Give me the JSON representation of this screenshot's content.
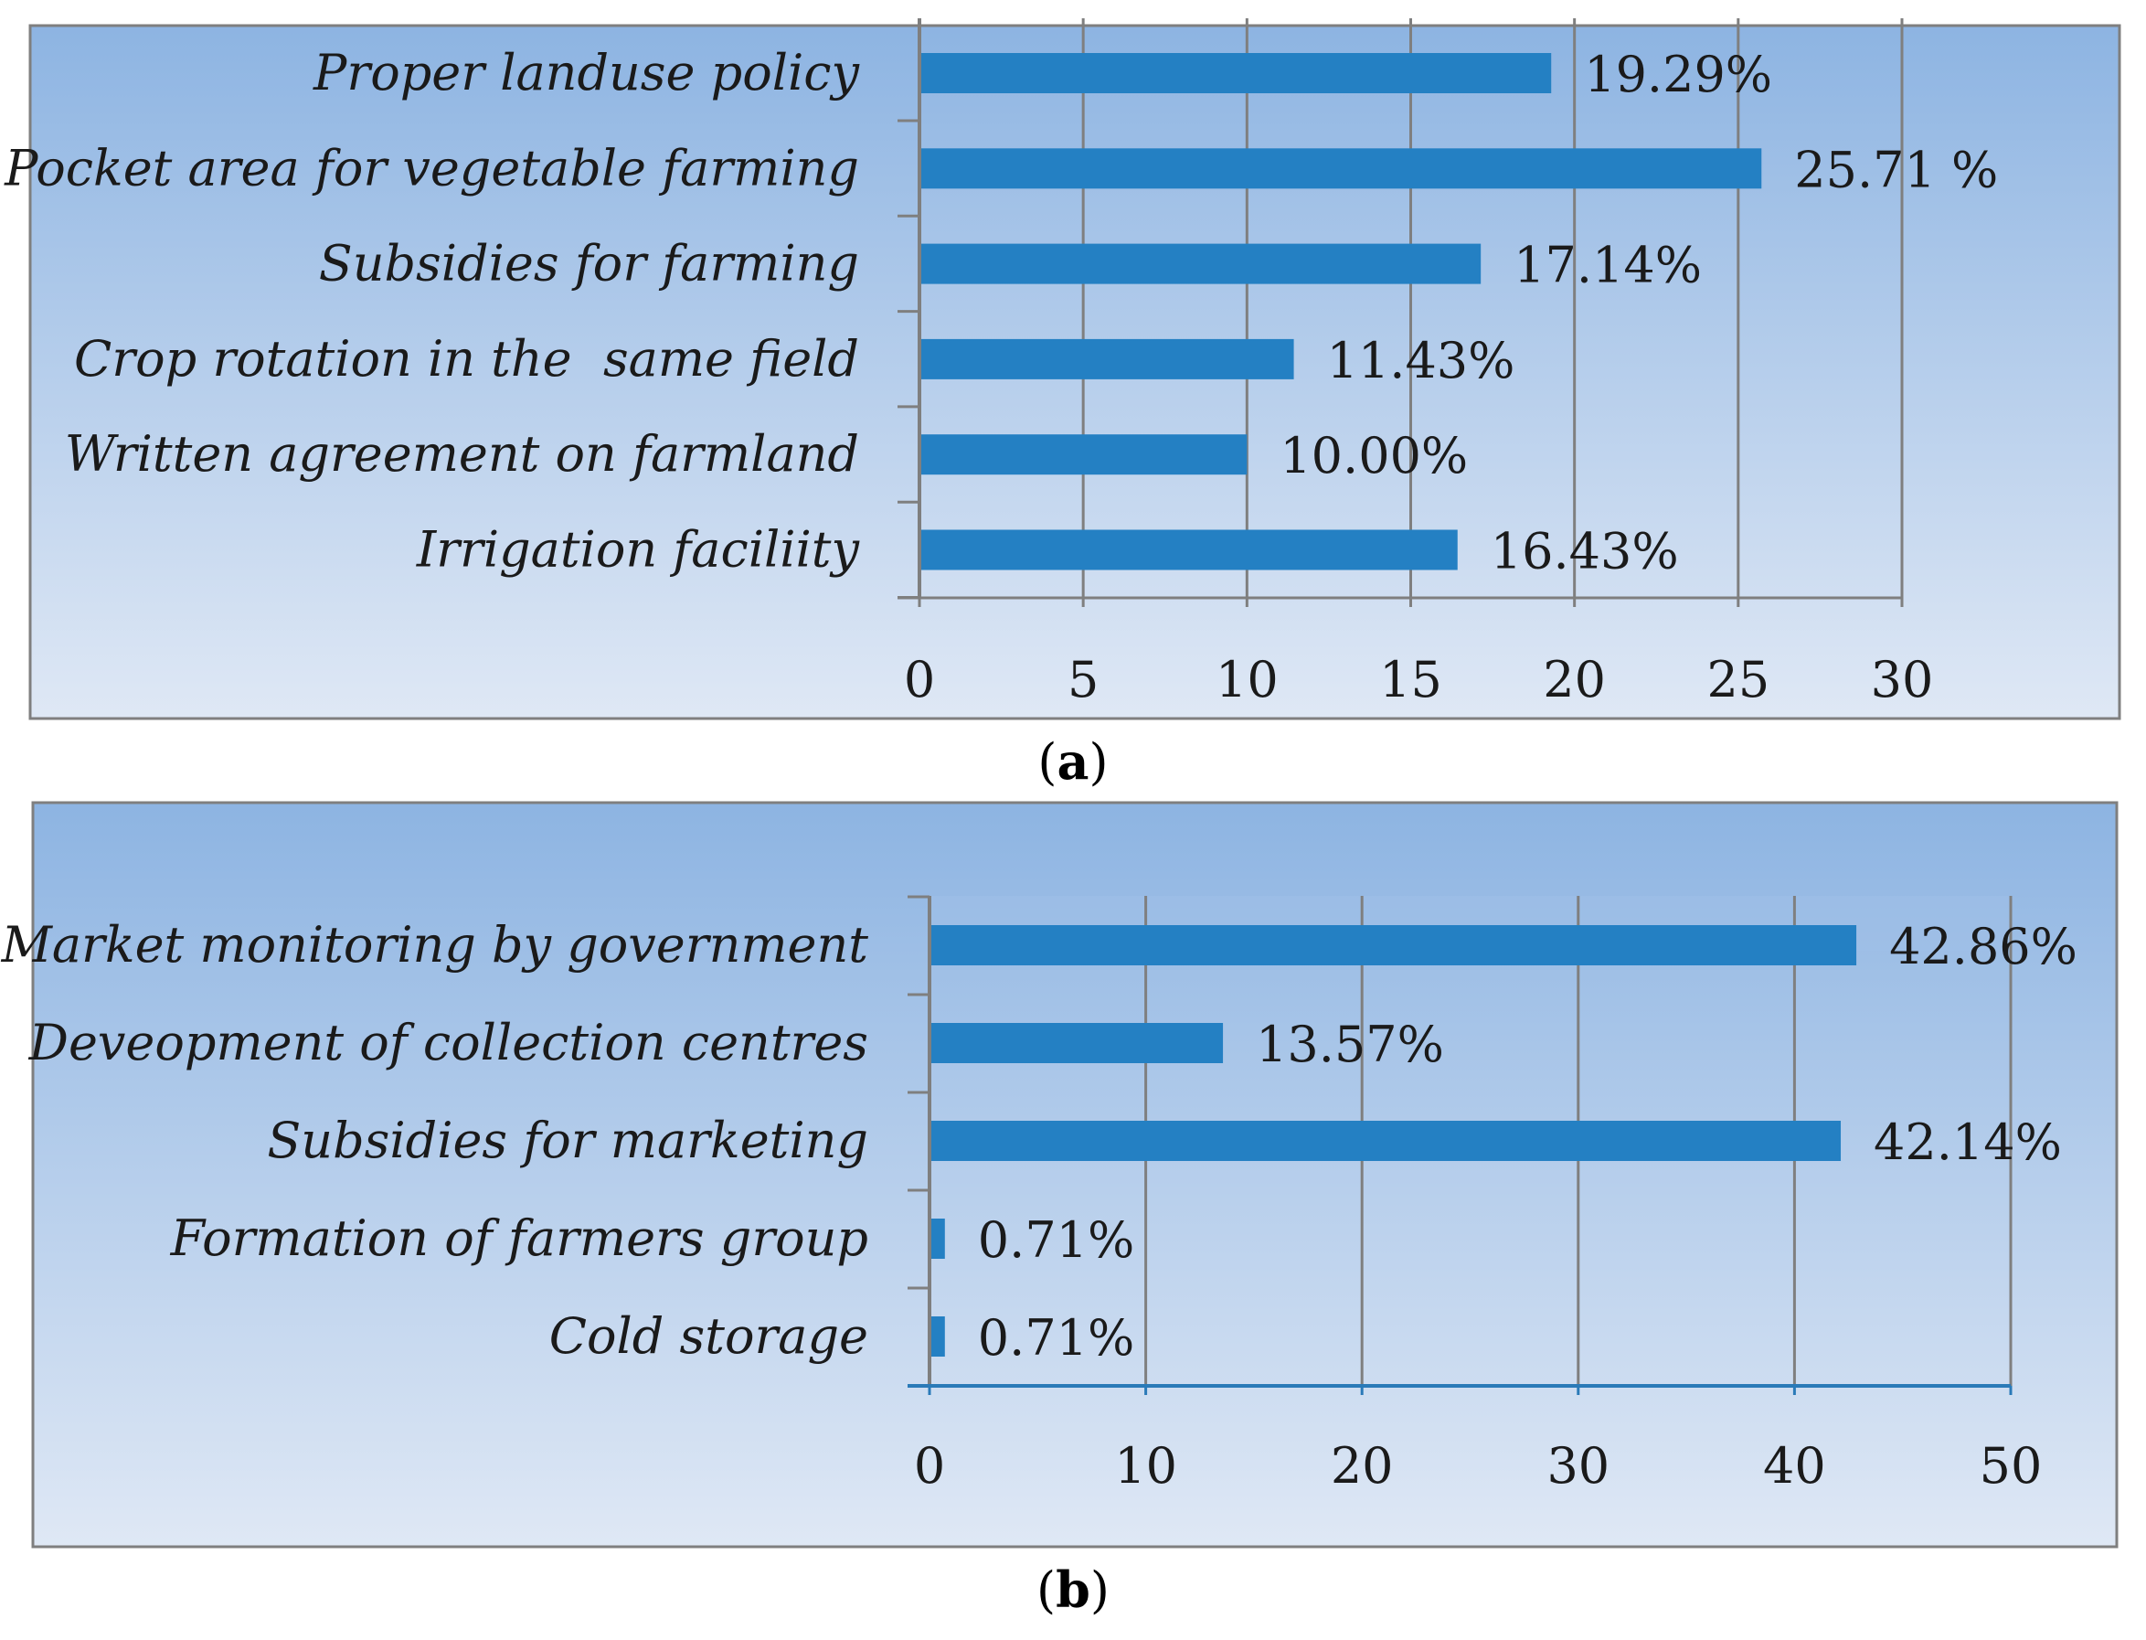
{
  "colors": {
    "bar": "#2480c3",
    "grid": "#7f7f7f",
    "panel_top": "#8db4e2",
    "panel_bottom": "#dfe8f5",
    "border": "#7f7f7f",
    "axis_b": "#2a7ab8"
  },
  "chart_data": [
    {
      "type": "bar",
      "orientation": "horizontal",
      "caption_prefix": "(",
      "caption_letter": "a",
      "caption_suffix": ")",
      "categories": [
        "Proper landuse policy",
        "Pocket area for vegetable farming",
        "Subsidies for farming",
        "Crop rotation in the  same field",
        "Written agreement on farmland",
        "Irrigation faciliity"
      ],
      "values": [
        19.29,
        25.71,
        17.14,
        11.43,
        10.0,
        16.43
      ],
      "value_labels": [
        "19.29%",
        "25.71 %",
        "17.14%",
        "11.43%",
        "10.00%",
        "16.43%"
      ],
      "xlim": [
        0,
        30
      ],
      "xticks": [
        0,
        5,
        10,
        15,
        20,
        25,
        30
      ],
      "grid": true
    },
    {
      "type": "bar",
      "orientation": "horizontal",
      "caption_prefix": "(",
      "caption_letter": "b",
      "caption_suffix": ")",
      "categories": [
        "Market monitoring by government",
        "Deveopment of collection centres",
        "Subsidies for marketing",
        "Formation of farmers group",
        "Cold storage"
      ],
      "values": [
        42.86,
        13.57,
        42.14,
        0.71,
        0.71
      ],
      "value_labels": [
        "42.86%",
        "13.57%",
        "42.14%",
        "0.71%",
        "0.71%"
      ],
      "xlim": [
        0,
        50
      ],
      "xticks": [
        0,
        10,
        20,
        30,
        40,
        50
      ],
      "grid": true
    }
  ]
}
